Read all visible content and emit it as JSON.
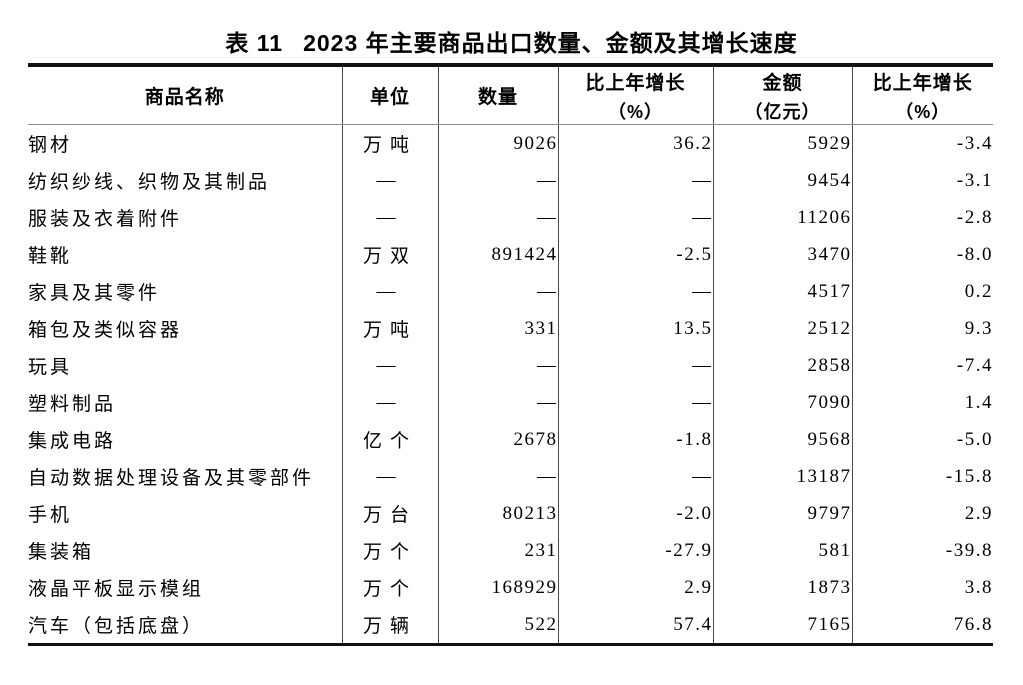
{
  "title": {
    "label": "表 11",
    "text": "2023 年主要商品出口数量、金额及其增长速度"
  },
  "table": {
    "columns": [
      {
        "label": "商品名称",
        "sub": ""
      },
      {
        "label": "单位",
        "sub": ""
      },
      {
        "label": "数量",
        "sub": ""
      },
      {
        "label": "比上年增长",
        "sub": "（%）"
      },
      {
        "label": "金额",
        "sub": "（亿元）"
      },
      {
        "label": "比上年增长",
        "sub": "（%）"
      }
    ],
    "rows": [
      [
        "钢材",
        "万吨",
        "9026",
        "36.2",
        "5929",
        "-3.4"
      ],
      [
        "纺织纱线、织物及其制品",
        "—",
        "—",
        "—",
        "9454",
        "-3.1"
      ],
      [
        "服装及衣着附件",
        "—",
        "—",
        "—",
        "11206",
        "-2.8"
      ],
      [
        "鞋靴",
        "万双",
        "891424",
        "-2.5",
        "3470",
        "-8.0"
      ],
      [
        "家具及其零件",
        "—",
        "—",
        "—",
        "4517",
        "0.2"
      ],
      [
        "箱包及类似容器",
        "万吨",
        "331",
        "13.5",
        "2512",
        "9.3"
      ],
      [
        "玩具",
        "—",
        "—",
        "—",
        "2858",
        "-7.4"
      ],
      [
        "塑料制品",
        "—",
        "—",
        "—",
        "7090",
        "1.4"
      ],
      [
        "集成电路",
        "亿个",
        "2678",
        "-1.8",
        "9568",
        "-5.0"
      ],
      [
        "自动数据处理设备及其零部件",
        "—",
        "—",
        "—",
        "13187",
        "-15.8"
      ],
      [
        "手机",
        "万台",
        "80213",
        "-2.0",
        "9797",
        "2.9"
      ],
      [
        "集装箱",
        "万个",
        "231",
        "-27.9",
        "581",
        "-39.8"
      ],
      [
        "液晶平板显示模组",
        "万个",
        "168929",
        "2.9",
        "1873",
        "3.8"
      ],
      [
        "汽车（包括底盘）",
        "万辆",
        "522",
        "57.4",
        "7165",
        "76.8"
      ]
    ]
  },
  "colors": {
    "background": "#ffffff",
    "text": "#000000",
    "border_heavy": "#121212",
    "border_vertical": "#4a4a4a",
    "header_underline": "#8f8f8f"
  }
}
